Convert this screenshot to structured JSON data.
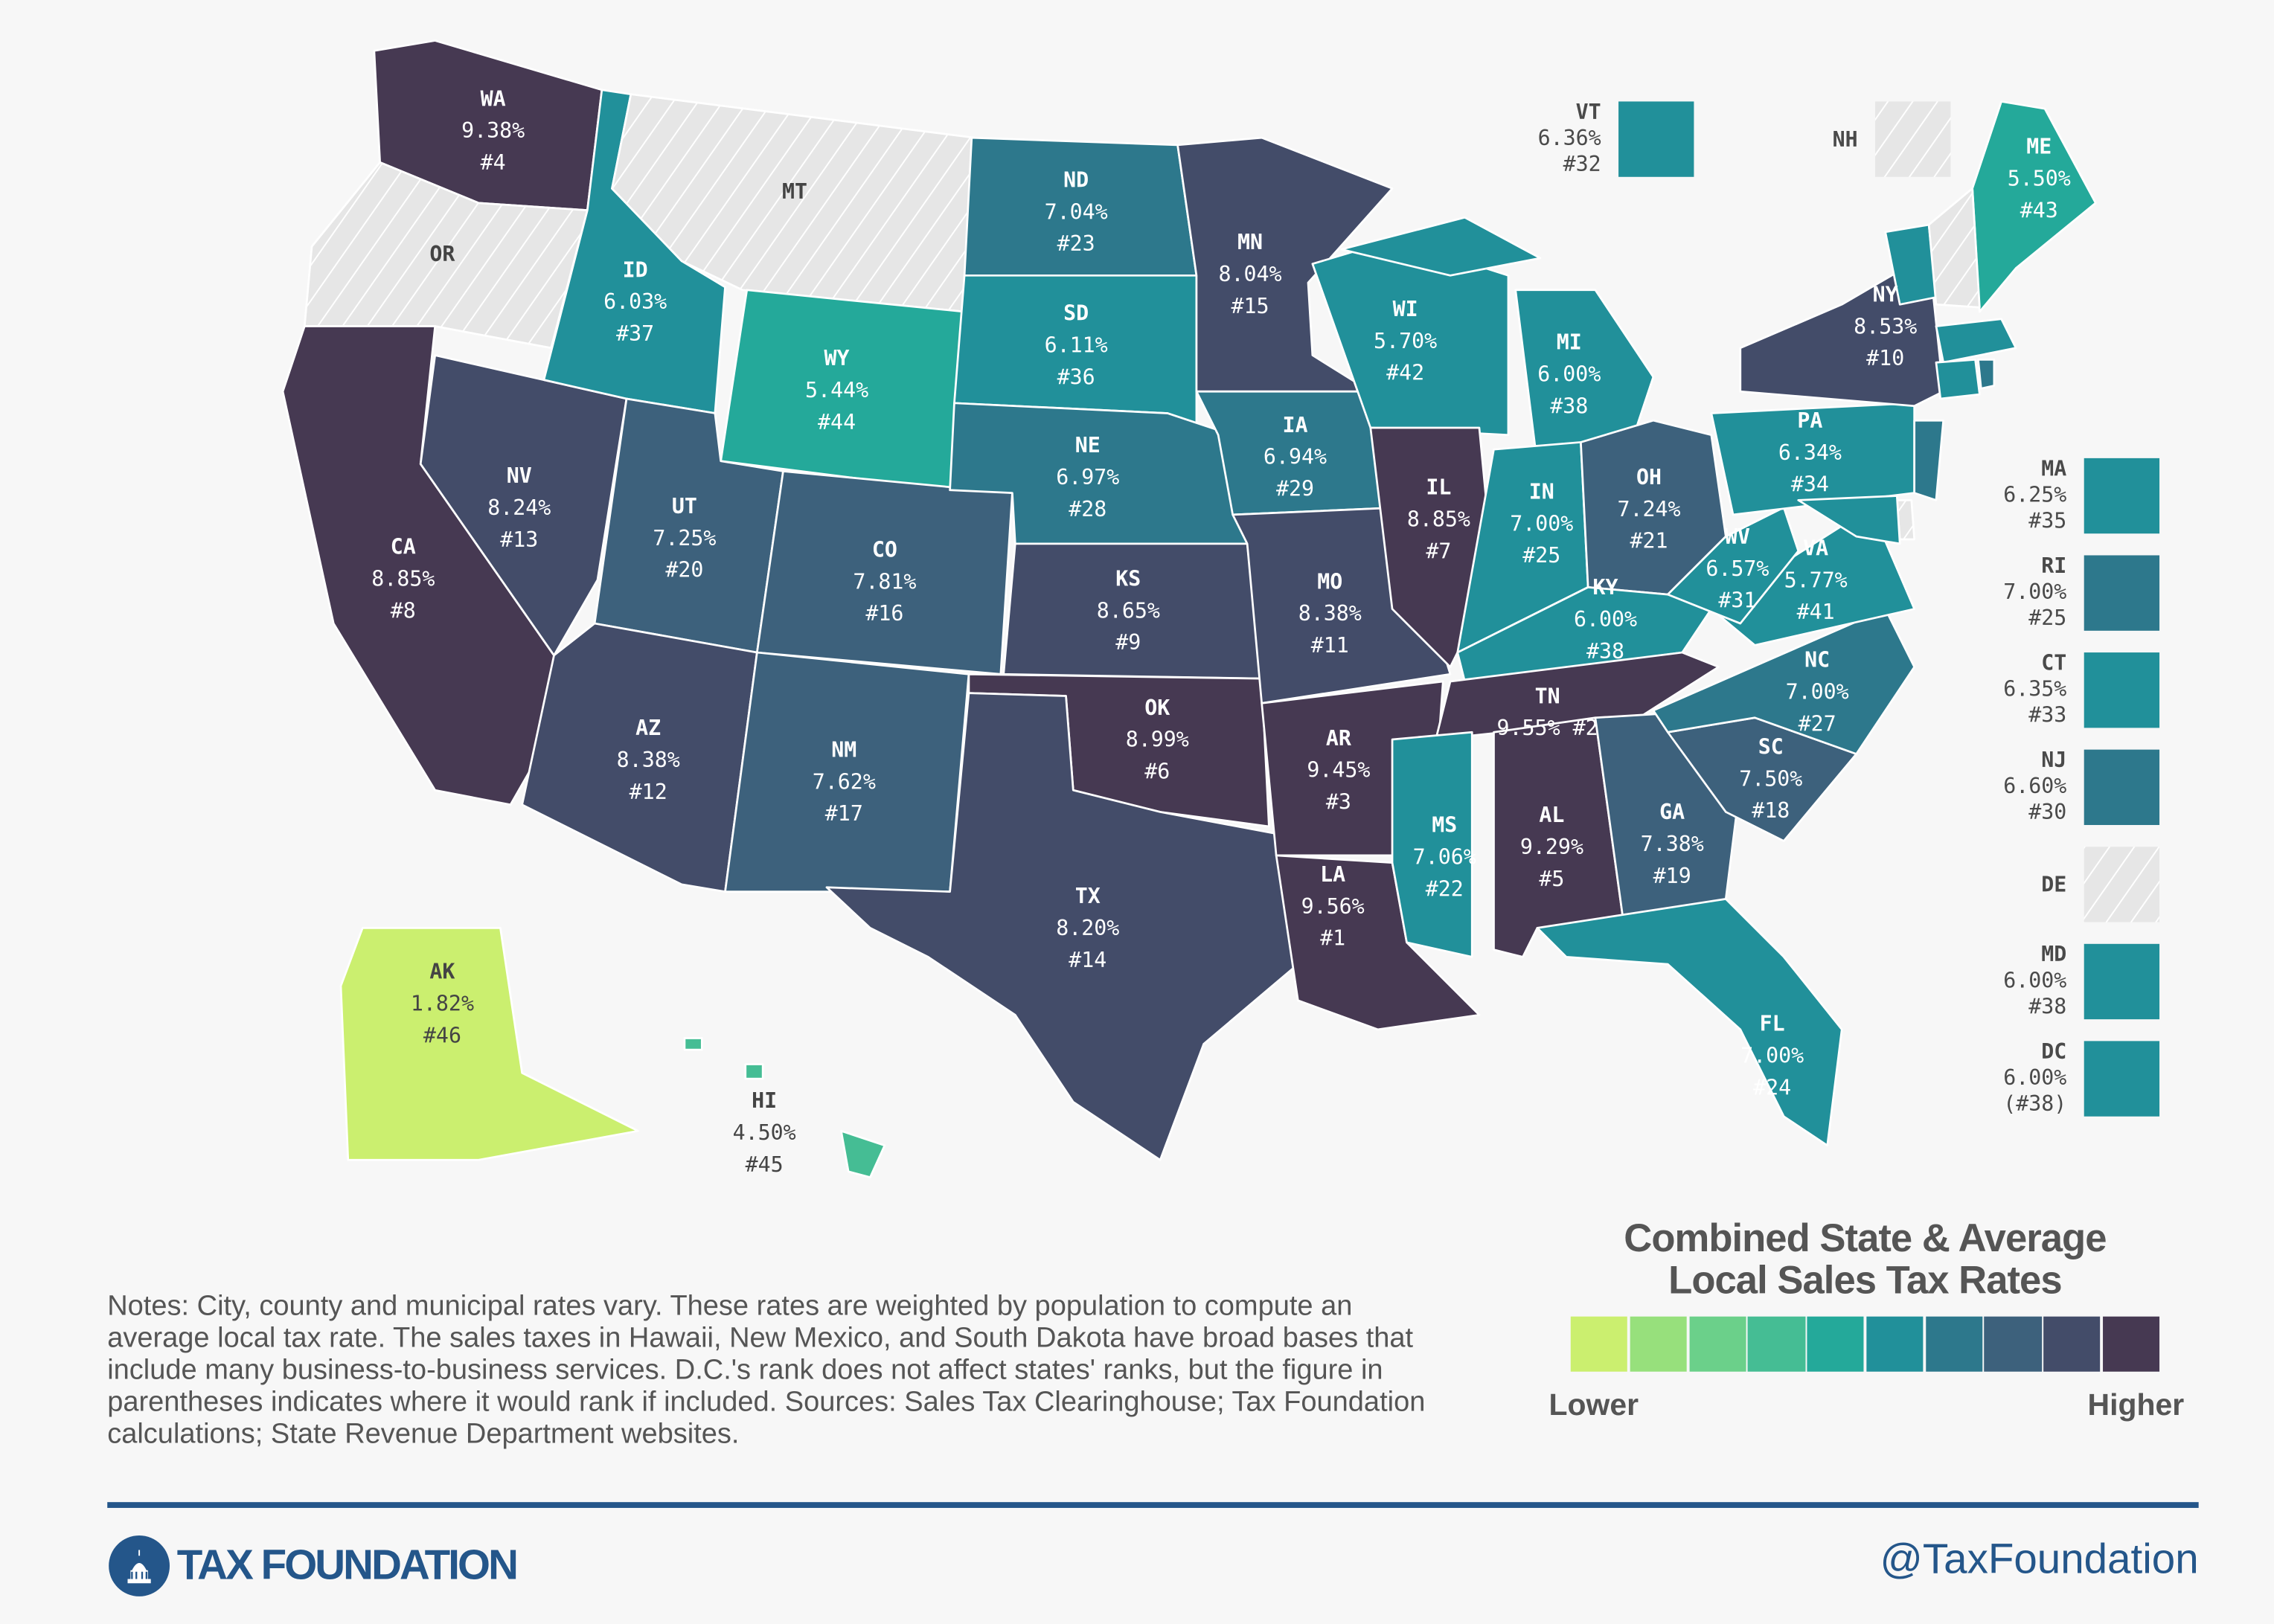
{
  "colors": {
    "scale": [
      "#cbef6f",
      "#97e07c",
      "#6bd08a",
      "#45bd94",
      "#24a99a",
      "#21909a",
      "#2d788c",
      "#3d617c",
      "#434c69",
      "#463952"
    ],
    "no_tax": "#e6e6e6",
    "brand": "#24568a"
  },
  "states": [
    {
      "abbr": "WA",
      "rate": "9.38%",
      "rank": "#4",
      "tier": 9
    },
    {
      "abbr": "OR",
      "rate": null,
      "rank": null,
      "tier": -1
    },
    {
      "abbr": "CA",
      "rate": "8.85%",
      "rank": "#8",
      "tier": 9
    },
    {
      "abbr": "NV",
      "rate": "8.24%",
      "rank": "#13",
      "tier": 8
    },
    {
      "abbr": "ID",
      "rate": "6.03%",
      "rank": "#37",
      "tier": 5
    },
    {
      "abbr": "MT",
      "rate": null,
      "rank": null,
      "tier": -1
    },
    {
      "abbr": "WY",
      "rate": "5.44%",
      "rank": "#44",
      "tier": 4
    },
    {
      "abbr": "UT",
      "rate": "7.25%",
      "rank": "#20",
      "tier": 7
    },
    {
      "abbr": "CO",
      "rate": "7.81%",
      "rank": "#16",
      "tier": 7
    },
    {
      "abbr": "AZ",
      "rate": "8.38%",
      "rank": "#12",
      "tier": 8
    },
    {
      "abbr": "NM",
      "rate": "7.62%",
      "rank": "#17",
      "tier": 7
    },
    {
      "abbr": "ND",
      "rate": "7.04%",
      "rank": "#23",
      "tier": 6
    },
    {
      "abbr": "SD",
      "rate": "6.11%",
      "rank": "#36",
      "tier": 5
    },
    {
      "abbr": "NE",
      "rate": "6.97%",
      "rank": "#28",
      "tier": 6
    },
    {
      "abbr": "KS",
      "rate": "8.65%",
      "rank": "#9",
      "tier": 8
    },
    {
      "abbr": "OK",
      "rate": "8.99%",
      "rank": "#6",
      "tier": 9
    },
    {
      "abbr": "TX",
      "rate": "8.20%",
      "rank": "#14",
      "tier": 8
    },
    {
      "abbr": "MN",
      "rate": "8.04%",
      "rank": "#15",
      "tier": 8
    },
    {
      "abbr": "IA",
      "rate": "6.94%",
      "rank": "#29",
      "tier": 6
    },
    {
      "abbr": "MO",
      "rate": "8.38%",
      "rank": "#11",
      "tier": 8
    },
    {
      "abbr": "AR",
      "rate": "9.45%",
      "rank": "#3",
      "tier": 9
    },
    {
      "abbr": "LA",
      "rate": "9.56%",
      "rank": "#1",
      "tier": 9
    },
    {
      "abbr": "WI",
      "rate": "5.70%",
      "rank": "#42",
      "tier": 5
    },
    {
      "abbr": "IL",
      "rate": "8.85%",
      "rank": "#7",
      "tier": 9
    },
    {
      "abbr": "MI",
      "rate": "6.00%",
      "rank": "#38",
      "tier": 5
    },
    {
      "abbr": "IN",
      "rate": "7.00%",
      "rank": "#25",
      "tier": 5
    },
    {
      "abbr": "OH",
      "rate": "7.24%",
      "rank": "#21",
      "tier": 7
    },
    {
      "abbr": "KY",
      "rate": "6.00%",
      "rank": "#38",
      "tier": 5
    },
    {
      "abbr": "TN",
      "rate": "9.55%",
      "rank": "#2",
      "tier": 9
    },
    {
      "abbr": "MS",
      "rate": "7.06%",
      "rank": "#22",
      "tier": 5
    },
    {
      "abbr": "AL",
      "rate": "9.29%",
      "rank": "#5",
      "tier": 9
    },
    {
      "abbr": "GA",
      "rate": "7.38%",
      "rank": "#19",
      "tier": 7
    },
    {
      "abbr": "FL",
      "rate": "7.00%",
      "rank": "#24",
      "tier": 5
    },
    {
      "abbr": "SC",
      "rate": "7.50%",
      "rank": "#18",
      "tier": 7
    },
    {
      "abbr": "NC",
      "rate": "7.00%",
      "rank": "#27",
      "tier": 6
    },
    {
      "abbr": "VA",
      "rate": "5.77%",
      "rank": "#41",
      "tier": 5
    },
    {
      "abbr": "WV",
      "rate": "6.57%",
      "rank": "#31",
      "tier": 5
    },
    {
      "abbr": "PA",
      "rate": "6.34%",
      "rank": "#34",
      "tier": 5
    },
    {
      "abbr": "NY",
      "rate": "8.53%",
      "rank": "#10",
      "tier": 8
    },
    {
      "abbr": "ME",
      "rate": "5.50%",
      "rank": "#43",
      "tier": 4
    },
    {
      "abbr": "AK",
      "rate": "1.82%",
      "rank": "#46",
      "tier": 0
    },
    {
      "abbr": "HI",
      "rate": "4.50%",
      "rank": "#45",
      "tier": 3
    }
  ],
  "side_states": [
    {
      "abbr": "VT",
      "rate": "6.36%",
      "rank": "#32",
      "tier": 5
    },
    {
      "abbr": "NH",
      "rate": null,
      "rank": null,
      "tier": -1
    },
    {
      "abbr": "MA",
      "rate": "6.25%",
      "rank": "#35",
      "tier": 5
    },
    {
      "abbr": "RI",
      "rate": "7.00%",
      "rank": "#25",
      "tier": 6
    },
    {
      "abbr": "CT",
      "rate": "6.35%",
      "rank": "#33",
      "tier": 5
    },
    {
      "abbr": "NJ",
      "rate": "6.60%",
      "rank": "#30",
      "tier": 6
    },
    {
      "abbr": "DE",
      "rate": null,
      "rank": null,
      "tier": -1
    },
    {
      "abbr": "MD",
      "rate": "6.00%",
      "rank": "#38",
      "tier": 5
    },
    {
      "abbr": "DC",
      "rate": "6.00%",
      "rank": "(#38)",
      "tier": 5
    }
  ],
  "legend": {
    "title_line1": "Combined State & Average",
    "title_line2": "Local Sales Tax Rates",
    "low_label": "Lower",
    "high_label": "Higher"
  },
  "notes": "Notes: City, county and municipal rates vary. These rates are weighted by population to compute an average local tax rate. The sales taxes in Hawaii, New Mexico, and South Dakota have broad bases that include many business-to-business services. D.C.'s rank does not affect states' ranks, but the figure in parentheses indicates where it would rank if included. Sources: Sales Tax Clearinghouse; Tax Foundation calculations; State Revenue Department websites.",
  "footer": {
    "logo_text": "TAX FOUNDATION",
    "handle": "@TaxFoundation"
  }
}
